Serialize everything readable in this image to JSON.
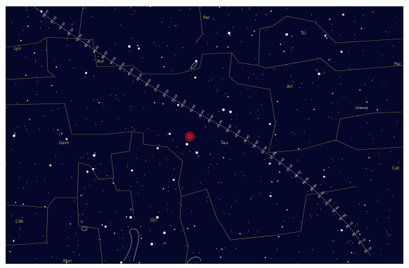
{
  "constellations": [
    "Lyn",
    "Per",
    "Tri",
    "Psc",
    "Aur",
    "Ari",
    "Gem",
    "Tau",
    "Cet",
    "CMi",
    "Ori",
    "Mon"
  ],
  "planet": {
    "name": "Uranus"
  },
  "ecliptic_ticks": [
    "01-05",
    "01-10",
    "01-15",
    "01-20",
    "01-25",
    "01-30",
    "02-04",
    "02-09",
    "02-14",
    "02-19",
    "02-24",
    "03-01",
    "03-06",
    "03-11",
    "03-16",
    "03-21",
    "03-26",
    "03-31",
    "04-05",
    "04-10",
    "04-15",
    "04-20",
    "04-25",
    "04-30",
    "05-05",
    "05-10",
    "05-15",
    "05-20",
    "05-25",
    "05-30",
    "06-04",
    "06-09",
    "06-14",
    "06-19",
    "06-24",
    "06-29",
    "07-04",
    "07-09",
    "07-14",
    "07-19"
  ],
  "star_labels": [
    "9",
    "8",
    "5",
    "4",
    "7",
    "2",
    "1",
    "3",
    "6",
    "11",
    "10"
  ],
  "colors": {
    "sky": "#04072a",
    "boundary": "#8a6a3a",
    "constellation_label": "#c9b24a",
    "path": "#7fa04a",
    "planet_blob": "#7a0f1a"
  }
}
